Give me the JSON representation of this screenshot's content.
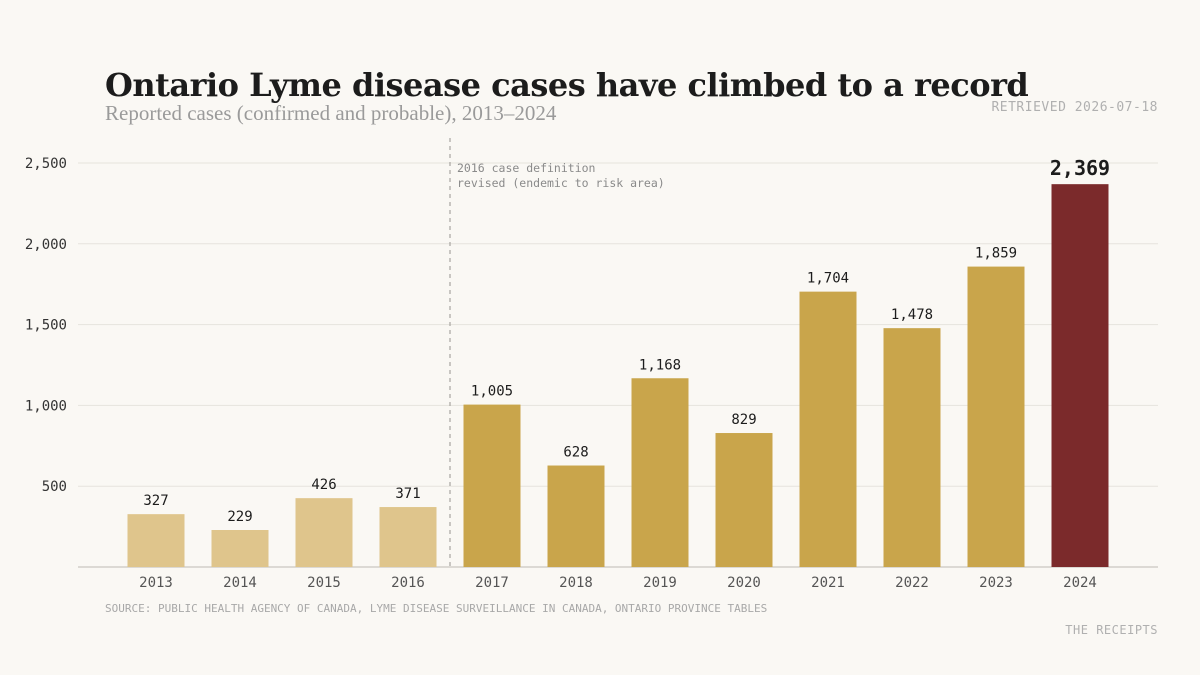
{
  "header": {
    "title": "Ontario Lyme disease cases have climbed to a record",
    "subtitle": "Reported cases (confirmed and probable), 2013–2024",
    "retrieved": "RETRIEVED 2026-07-18"
  },
  "footer": {
    "source": "SOURCE: PUBLIC HEALTH AGENCY OF CANADA, LYME DISEASE SURVEILLANCE IN CANADA, ONTARIO PROVINCE TABLES",
    "brand": "THE RECEIPTS"
  },
  "colors": {
    "pre_2017": "#dfc58c",
    "post_2016": "#c9a54b",
    "highlight": "#7b2a2b",
    "highlight_label": "#7b2a2b"
  },
  "chart_data": {
    "type": "bar",
    "title": "Ontario Lyme disease cases have climbed to a record",
    "subtitle": "Reported cases (confirmed and probable), 2013–2024",
    "categories": [
      "2013",
      "2014",
      "2015",
      "2016",
      "2017",
      "2018",
      "2019",
      "2020",
      "2021",
      "2022",
      "2023",
      "2024"
    ],
    "values": [
      327,
      229,
      426,
      371,
      1005,
      628,
      1168,
      829,
      1704,
      1478,
      1859,
      2369
    ],
    "value_labels": [
      "327",
      "229",
      "426",
      "371",
      "1,005",
      "628",
      "1,168",
      "829",
      "1,704",
      "1,478",
      "1,859",
      "2,369"
    ],
    "ylim": [
      0,
      2500
    ],
    "yticks": [
      500,
      1000,
      1500,
      2000,
      2500
    ],
    "ytick_labels": [
      "500",
      "1,000",
      "1,500",
      "2,000",
      "2,500"
    ],
    "grid": true,
    "highlight_category": "2024",
    "annotation": {
      "after_category": "2016",
      "lines": [
        "2016 case definition",
        "revised (endemic to risk area)"
      ]
    }
  }
}
